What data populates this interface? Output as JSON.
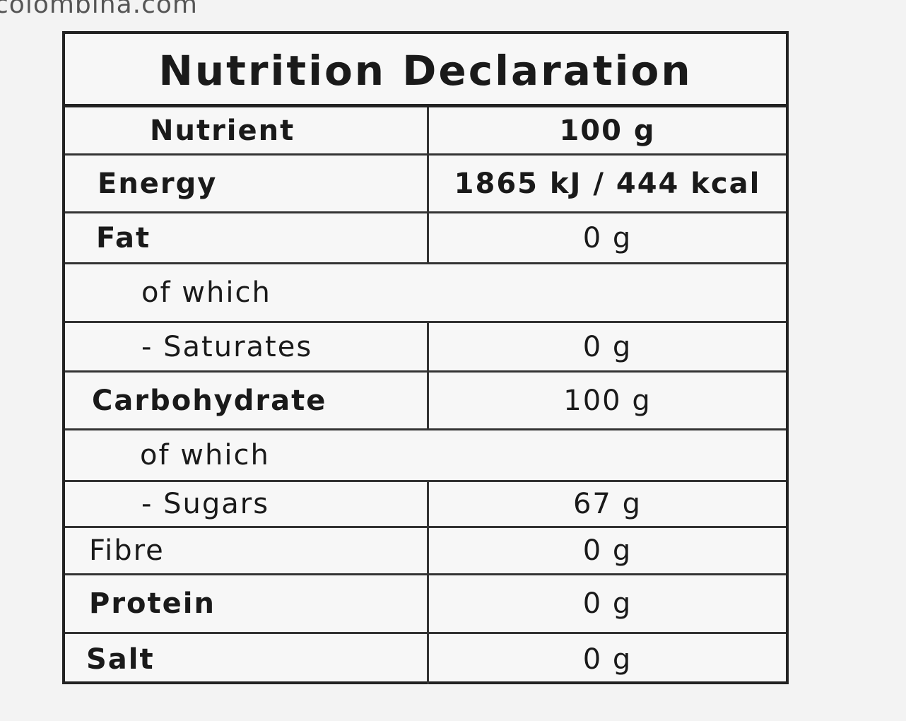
{
  "site": "colombina.com",
  "table": {
    "title": "Nutrition Declaration",
    "header": [
      "Nutrient",
      "100 g"
    ],
    "rows": [
      [
        "Energy",
        "1865 kJ / 444 kcal"
      ],
      [
        "Fat",
        "0 g"
      ],
      [
        "of which"
      ],
      [
        "- Saturates",
        "0 g"
      ],
      [
        "Carbohydrate",
        "100 g"
      ],
      [
        "of which"
      ],
      [
        "- Sugars",
        "67 g"
      ],
      [
        "Fibre",
        "0 g"
      ],
      [
        "Protein",
        "0 g"
      ],
      [
        "Salt",
        "0 g"
      ]
    ]
  }
}
